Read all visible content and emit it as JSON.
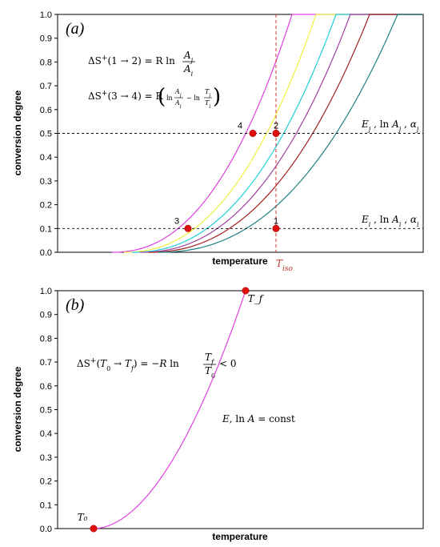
{
  "chart_data": [
    {
      "type": "line",
      "panel_label": "(a)",
      "ylabel": "conversion degree",
      "xlabel": "temperature",
      "ylim": [
        0,
        1
      ],
      "yticks": [
        "0.0",
        "0.1",
        "0.2",
        "0.3",
        "0.4",
        "0.5",
        "0.6",
        "0.7",
        "0.8",
        "0.9",
        "1.0"
      ],
      "grid": false,
      "series_colors": [
        "#e040e0",
        "#f0f040",
        "#20d0d8",
        "#a040a0",
        "#a02020",
        "#208080"
      ],
      "equations": {
        "eq1": "ΔS⁺(1 → 2) = R ln(Aⱼ / Aᵢ)",
        "eq2": "ΔS⁺(3 → 4) = R (ln(Aⱼ / Aᵢ) − ln(Tⱼ / Tᵢ))"
      },
      "level_labels": {
        "upper": "Eⱼ , ln Aⱼ , αⱼ",
        "lower": "Eᵢ , ln Aᵢ , αᵢ"
      },
      "levels": [
        0.5,
        0.1
      ],
      "iso_label": "Tiso",
      "points": [
        {
          "label": "1",
          "y": 0.1
        },
        {
          "label": "2",
          "y": 0.5
        },
        {
          "label": "3",
          "y": 0.1
        },
        {
          "label": "4",
          "y": 0.5
        }
      ]
    },
    {
      "type": "line",
      "panel_label": "(b)",
      "ylabel": "conversion degree",
      "xlabel": "temperature",
      "ylim": [
        0,
        1
      ],
      "yticks": [
        "0.0",
        "0.1",
        "0.2",
        "0.3",
        "0.4",
        "0.5",
        "0.6",
        "0.7",
        "0.8",
        "0.9",
        "1.0"
      ],
      "grid": false,
      "series_color": "#e040e0",
      "equation": "ΔS⁺(T₀ → T_f) = −R ln(T_f / T₀) < 0",
      "const_label": "E, ln A = const",
      "points": [
        {
          "label": "T₀",
          "y": 0.0
        },
        {
          "label": "T_f",
          "y": 1.0
        }
      ]
    }
  ]
}
